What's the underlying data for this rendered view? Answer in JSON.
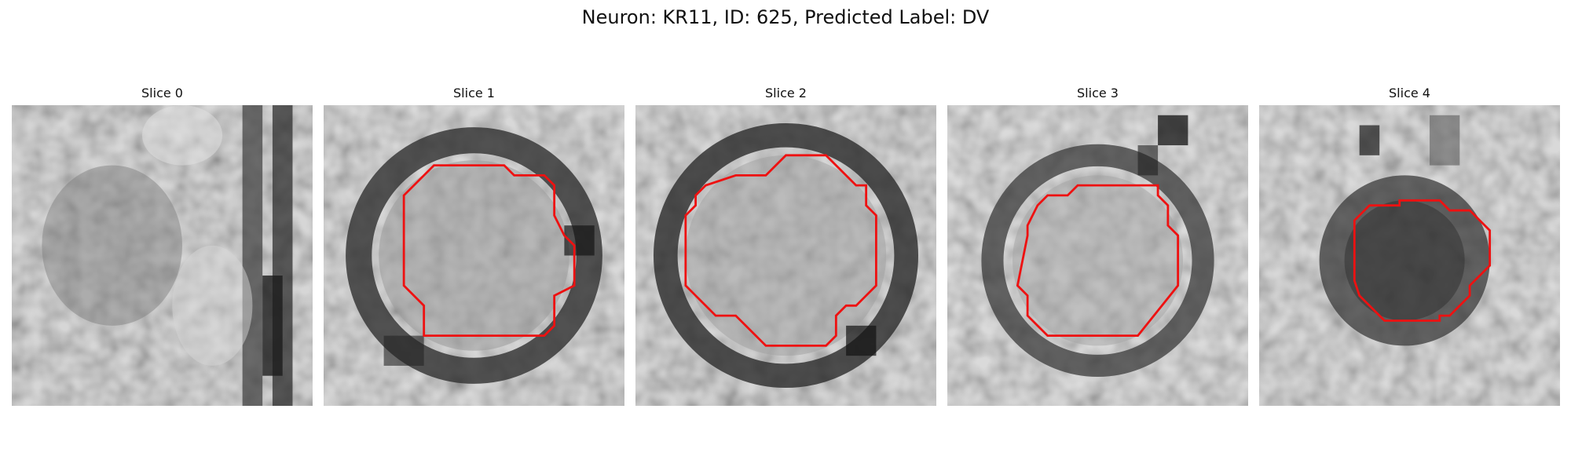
{
  "figure": {
    "title": "Neuron: KR11, ID: 625, Predicted Label: DV"
  },
  "slices": [
    {
      "title": "Slice 0",
      "has_contour": false
    },
    {
      "title": "Slice 1",
      "has_contour": true
    },
    {
      "title": "Slice 2",
      "has_contour": true
    },
    {
      "title": "Slice 3",
      "has_contour": true
    },
    {
      "title": "Slice 4",
      "has_contour": true
    }
  ],
  "colors": {
    "contour": "#ee1111",
    "background": "#ffffff"
  }
}
